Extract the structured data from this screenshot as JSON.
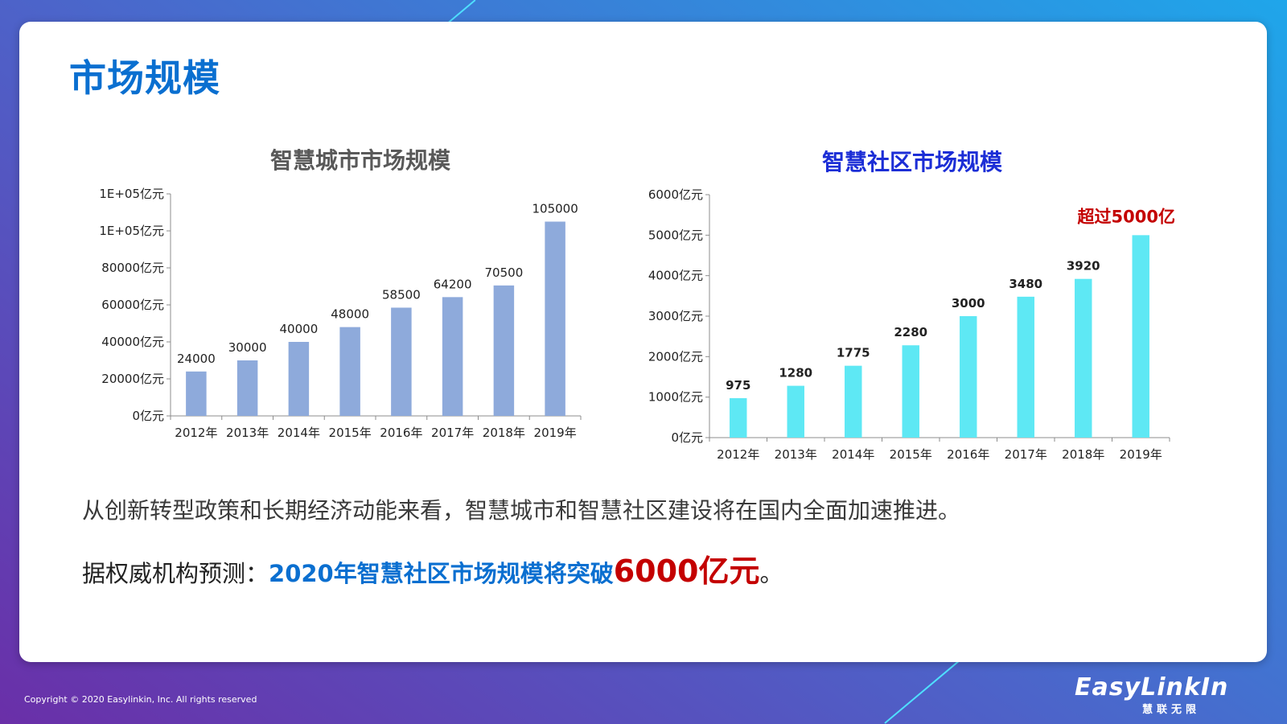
{
  "slide": {
    "title": "市场规模",
    "summary": "从创新转型政策和长期经济动能来看，智慧城市和智慧社区建设将在国内全面加速推进。",
    "forecast_prefix": "据权威机构预测：",
    "forecast_highlight": "2020年智慧社区市场规模将突破",
    "forecast_value": "6000亿元",
    "forecast_suffix": "。",
    "copyright": "Copyright © 2020 Easylinkin, Inc. All rights reserved",
    "brand_name": "EasyLinkIn",
    "brand_sub": "慧联无限"
  },
  "colors": {
    "accent": "#0a6fd0",
    "left_bar": "#8eaadb",
    "right_bar": "#5ee8f4",
    "highlight_red": "#c40000",
    "right_title": "#1c2ed6"
  },
  "chart_data": [
    {
      "type": "bar",
      "title": "智慧城市市场规模",
      "categories": [
        "2012年",
        "2013年",
        "2014年",
        "2015年",
        "2016年",
        "2017年",
        "2018年",
        "2019年"
      ],
      "values": [
        24000,
        30000,
        40000,
        48000,
        58500,
        64200,
        70500,
        105000
      ],
      "data_labels": [
        "24000",
        "30000",
        "40000",
        "48000",
        "58500",
        "64200",
        "70500",
        "105000"
      ],
      "y_ticks": [
        0,
        20000,
        40000,
        60000,
        80000,
        100000,
        120000
      ],
      "y_tick_labels": [
        "0亿元",
        "20000亿元",
        "40000亿元",
        "60000亿元",
        "80000亿元",
        "1E+05亿元",
        "1E+05亿元"
      ],
      "ylim": [
        0,
        120000
      ],
      "grid": false,
      "legend": "none"
    },
    {
      "type": "bar",
      "title": "智慧社区市场规模",
      "categories": [
        "2012年",
        "2013年",
        "2014年",
        "2015年",
        "2016年",
        "2017年",
        "2018年",
        "2019年"
      ],
      "values": [
        975,
        1280,
        1775,
        2280,
        3000,
        3480,
        3920,
        5000
      ],
      "data_labels": [
        "975",
        "1280",
        "1775",
        "2280",
        "3000",
        "3480",
        "3920",
        ""
      ],
      "y_ticks": [
        0,
        1000,
        2000,
        3000,
        4000,
        5000,
        6000
      ],
      "y_tick_labels": [
        "0亿元",
        "1000亿元",
        "2000亿元",
        "3000亿元",
        "4000亿元",
        "5000亿元",
        "6000亿元"
      ],
      "ylim": [
        0,
        6000
      ],
      "annotation": "超过5000亿",
      "grid": false,
      "legend": "none"
    }
  ]
}
